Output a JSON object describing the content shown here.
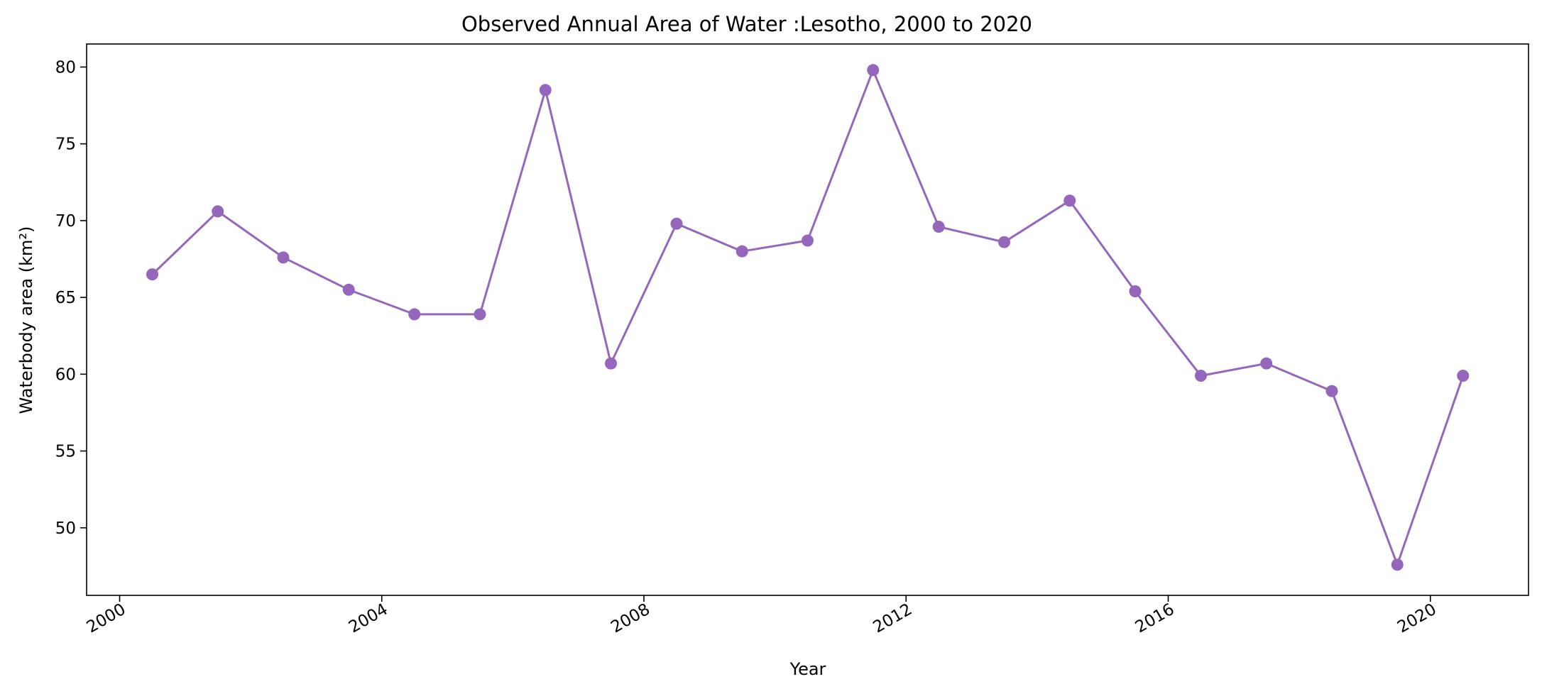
{
  "chart_data": {
    "type": "line",
    "title": "Observed Annual Area of Water :Lesotho, 2000 to 2020",
    "xlabel": "Year",
    "ylabel": "Waterbody area (km²)",
    "x_scale": "date",
    "xlim": [
      "1999-07-01",
      "2021-07-01"
    ],
    "ylim": [
      45.6,
      81.5
    ],
    "x_ticks": [
      "2000",
      "2004",
      "2008",
      "2012",
      "2016",
      "2020"
    ],
    "y_ticks": [
      50,
      55,
      60,
      65,
      70,
      75,
      80
    ],
    "grid": false,
    "legend": "none",
    "color": "#9467bd",
    "marker": "circle",
    "series": [
      {
        "x": [
          "2000-07-01",
          "2001-07-01",
          "2002-07-01",
          "2003-07-01",
          "2004-07-01",
          "2005-07-01",
          "2006-07-01",
          "2007-07-01",
          "2008-07-01",
          "2009-07-01",
          "2010-07-01",
          "2011-07-01",
          "2012-07-01",
          "2013-07-01",
          "2014-07-01",
          "2015-07-01",
          "2016-07-01",
          "2017-07-01",
          "2018-07-01",
          "2019-07-01",
          "2020-07-01"
        ],
        "values": [
          66.5,
          70.6,
          67.6,
          65.5,
          63.9,
          63.9,
          78.5,
          60.7,
          69.8,
          68.0,
          68.7,
          79.8,
          69.6,
          68.6,
          71.3,
          65.4,
          59.9,
          60.7,
          58.9,
          47.6,
          59.9
        ]
      }
    ]
  }
}
